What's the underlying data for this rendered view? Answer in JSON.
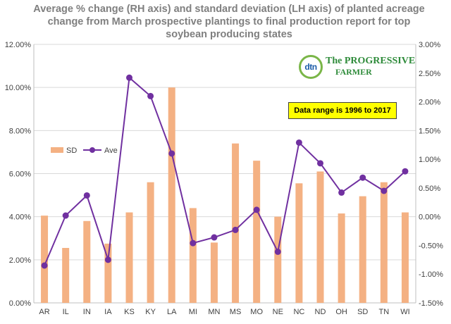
{
  "title_line1": "Average % change (RH axis) and standard deviation (LH axis) of planted acreage",
  "title_line2": "change from March prospective plantings to final production report for top",
  "title_line3": "soybean producing states",
  "note": "Data range is 1996 to 2017",
  "logo": {
    "mark": "dtn",
    "line1": "The PROGRESSIVE",
    "line2": "FARMER"
  },
  "colors": {
    "sd_bar": "#f4b183",
    "ave_line": "#7030a0",
    "grid": "#d9d9d9",
    "note_bg": "#ffff00"
  },
  "chart_data": {
    "type": "bar+line",
    "categories": [
      "AR",
      "IL",
      "IN",
      "IA",
      "KS",
      "KY",
      "LA",
      "MI",
      "MN",
      "MS",
      "MO",
      "NE",
      "NC",
      "ND",
      "OH",
      "SD",
      "TN",
      "WI"
    ],
    "series": [
      {
        "name": "SD",
        "type": "bar",
        "axis": "left",
        "values": [
          4.05,
          2.55,
          3.8,
          2.75,
          4.2,
          5.6,
          10.0,
          4.4,
          2.8,
          7.4,
          6.6,
          4.0,
          5.55,
          6.1,
          4.15,
          4.95,
          5.6,
          4.2
        ]
      },
      {
        "name": "Ave",
        "type": "line",
        "axis": "right",
        "values": [
          -0.85,
          0.02,
          0.37,
          -0.75,
          2.42,
          2.1,
          1.1,
          -0.46,
          -0.36,
          -0.23,
          0.12,
          -0.61,
          1.29,
          0.93,
          0.42,
          0.68,
          0.45,
          0.79
        ]
      }
    ],
    "y_left": {
      "min": 0,
      "max": 12,
      "step": 2,
      "tick_labels": [
        "0.00%",
        "2.00%",
        "4.00%",
        "6.00%",
        "8.00%",
        "10.00%",
        "12.00%"
      ]
    },
    "y_right": {
      "min": -1.5,
      "max": 3.0,
      "step": 0.5,
      "tick_labels": [
        "-1.50%",
        "-1.00%",
        "-0.50%",
        "0.00%",
        "0.50%",
        "1.00%",
        "1.50%",
        "2.00%",
        "2.50%",
        "3.00%"
      ]
    },
    "grid": true,
    "legend_position": "left-middle"
  }
}
